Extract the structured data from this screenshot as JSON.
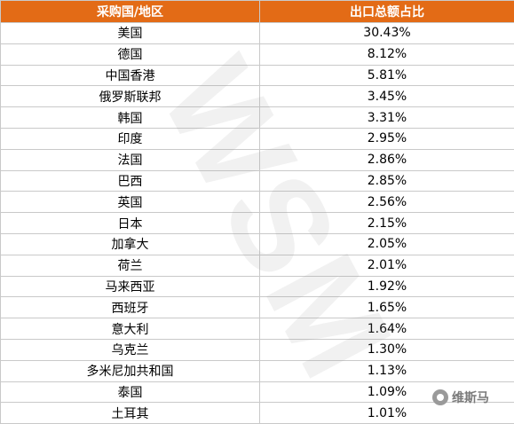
{
  "table": {
    "headers": [
      "采购国/地区",
      "出口总额占比"
    ],
    "rows": [
      [
        "美国",
        "30.43%"
      ],
      [
        "德国",
        "8.12%"
      ],
      [
        "中国香港",
        "5.81%"
      ],
      [
        "俄罗斯联邦",
        "3.45%"
      ],
      [
        "韩国",
        "3.31%"
      ],
      [
        "印度",
        "2.95%"
      ],
      [
        "法国",
        "2.86%"
      ],
      [
        "巴西",
        "2.85%"
      ],
      [
        "英国",
        "2.56%"
      ],
      [
        "日本",
        "2.15%"
      ],
      [
        "加拿大",
        "2.05%"
      ],
      [
        "荷兰",
        "2.01%"
      ],
      [
        "马来西亚",
        "1.92%"
      ],
      [
        "西班牙",
        "1.65%"
      ],
      [
        "意大利",
        "1.64%"
      ],
      [
        "乌克兰",
        "1.30%"
      ],
      [
        "多米尼加共和国",
        "1.13%"
      ],
      [
        "泰国",
        "1.09%"
      ],
      [
        "土耳其",
        "1.01%"
      ]
    ]
  },
  "watermark": {
    "text": "WSM"
  },
  "logo": {
    "text": "维斯马",
    "icon": "wechat-icon"
  },
  "colors": {
    "header_bg": "#e36b16",
    "header_text": "#ffffff",
    "border": "#c9c9c9"
  }
}
